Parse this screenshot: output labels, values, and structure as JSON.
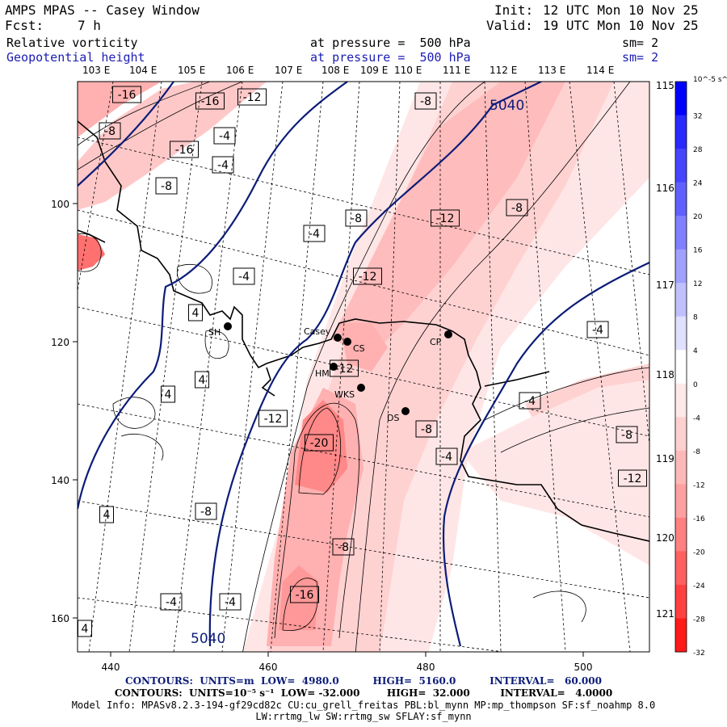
{
  "header": {
    "title": "AMPS MPAS -- Casey Window",
    "fcst_label": "Fcst:",
    "fcst_value": "7 h",
    "init_label": "Init:",
    "init_value": "12 UTC Mon 10 Nov 25",
    "valid_label": "Valid:",
    "valid_value": "19 UTC Mon 10 Nov 25",
    "field1": {
      "name": "Relative vorticity",
      "level": "at pressure =  500 hPa",
      "smooth": "sm= 2"
    },
    "field2": {
      "name": "Geopotential height",
      "level": "at pressure =  500 hPa",
      "smooth": "sm= 2"
    }
  },
  "map": {
    "lon_labels_top": [
      "103 E",
      "104 E",
      "105 E",
      "106 E",
      "107 E",
      "108 E",
      "109 E",
      "110 E",
      "111 E",
      "112 E",
      "113 E",
      "114 E"
    ],
    "lon_labels_right": [
      "115 E",
      "116 E",
      "117 E",
      "118 E",
      "119 E",
      "120 E",
      "121 E"
    ],
    "x_ticks": [
      "440",
      "460",
      "480",
      "500"
    ],
    "y_ticks": [
      "100",
      "120",
      "140",
      "160"
    ],
    "height_contour_labels": [
      "5040",
      "5040"
    ],
    "vorticity_labels": [
      "-16",
      "-16",
      "-12",
      "-8",
      "-16",
      "-4",
      "-4",
      "-8",
      "-8",
      "-12",
      "-8",
      "-4",
      "-4",
      "-12",
      "4",
      "4",
      "4",
      "-12",
      "-4",
      "-4",
      "-12",
      "-20",
      "-8",
      "-4",
      "-8",
      "-12",
      "-8",
      "-8",
      "4",
      "-4",
      "-4",
      "-16",
      "4",
      "-8"
    ],
    "stations": [
      "Casey",
      "SH",
      "CS",
      "HM",
      "WKS",
      "DS",
      "CP"
    ],
    "colors": {
      "height_contour": "#0c1c78",
      "coast": "#000000",
      "positive": "#1c1cff",
      "negative": "#ff2020"
    }
  },
  "colorbar": {
    "unit": "10^-5 s^-1",
    "labels": [
      "32",
      "28",
      "24",
      "20",
      "16",
      "12",
      "8",
      "4",
      "0",
      "-4",
      "-8",
      "-12",
      "-16",
      "-20",
      "-24",
      "-28",
      "-32"
    ],
    "colors": [
      "#0000ff",
      "#2a2aff",
      "#4545ff",
      "#6060ff",
      "#8080ff",
      "#a0a0ff",
      "#c0c0ff",
      "#e0e0ff",
      "#ffffff",
      "#ffe8e8",
      "#ffd0d0",
      "#ffb8b8",
      "#ffa0a0",
      "#ff8080",
      "#ff6060",
      "#ff4040",
      "#ff1a1a"
    ]
  },
  "footer": {
    "line1": "CONTOURS:  UNITS=m  LOW=  4980.0          HIGH=  5160.0          INTERVAL=   60.000",
    "line2": "CONTOURS:  UNITS=10⁻⁵ s⁻¹  LOW= -32.000        HIGH=  32.000         INTERVAL=   4.0000",
    "line3": "Model Info: MPASv8.2.3-194-gf29cd82c CU:cu_grell_freitas PBL:bl_mynn MP:mp_thompson SF:sf_noahmp 8.0",
    "line4": "LW:rrtmg_lw SW:rrtmg_sw SFLAY:sf_mynn"
  }
}
